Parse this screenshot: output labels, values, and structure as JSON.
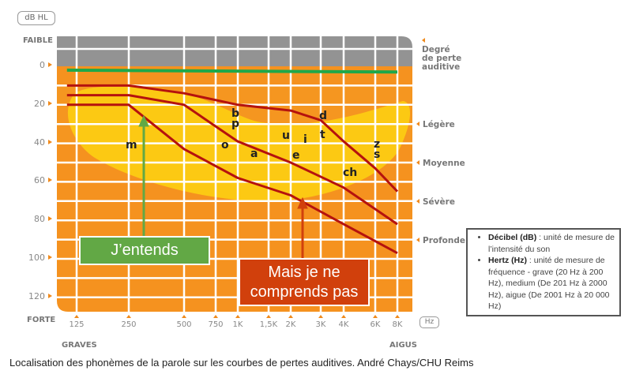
{
  "unit_y": "dB HL",
  "unit_x": "Hz",
  "faible": "FAIBLE",
  "forte": "FORTE",
  "graves": "GRAVES",
  "aigus": "AIGUS",
  "degree_title": [
    "Degré",
    "de perte",
    "auditive"
  ],
  "degree_levels": [
    "Légère",
    "Moyenne",
    "Sévère",
    "Profonde"
  ],
  "y_ticks": [
    "0",
    "20",
    "40",
    "60",
    "80",
    "100",
    "120"
  ],
  "x_ticks": [
    "125",
    "250",
    "500",
    "750",
    "1K",
    "1,5K",
    "2K",
    "3K",
    "4K",
    "6K",
    "8K"
  ],
  "phonemes": [
    "m",
    "b",
    "p",
    "o",
    "a",
    "u",
    "i",
    "e",
    "d",
    "t",
    "z",
    "s",
    "ch"
  ],
  "callouts": {
    "hear": "J’entends",
    "understand_1": "Mais je ne",
    "understand_2": "comprends pas"
  },
  "info": {
    "db_term": "Décibel (dB)",
    "db_text": " : unité de mesure de l’intensité du son",
    "hz_term": "Hertz (Hz)",
    "hz_text": " : unité de mesure de fréquence - grave (20 Hz à 200 Hz), medium (De 201 Hz à 2000 Hz), aigue (De 2001 Hz à 20 000 Hz)"
  },
  "caption": "Localisation des phonèmes de la parole sur les courbes de pertes auditives. André Chays/CHU Reims",
  "colors": {
    "orange": "#f5921f",
    "yellow": "#fcc913",
    "grey": "#939393",
    "green_line": "#1fa84a",
    "curve": "#b5120e",
    "green_box": "#62a845",
    "red_box": "#d1400c"
  },
  "chart_data": {
    "type": "line",
    "xlabel": "Hz",
    "ylabel": "dB HL",
    "ylim": [
      -15,
      128
    ],
    "x_ticks_hz": [
      125,
      250,
      500,
      750,
      1000,
      1500,
      2000,
      3000,
      4000,
      6000,
      8000
    ],
    "series": [
      {
        "name": "normal hearing",
        "color": "#1fa84a",
        "points": [
          [
            110,
            2
          ],
          [
            8000,
            3
          ]
        ]
      },
      {
        "name": "loss curve 1",
        "color": "#b5120e",
        "points": [
          [
            110,
            10
          ],
          [
            250,
            10
          ],
          [
            500,
            14
          ],
          [
            1000,
            20
          ],
          [
            2000,
            23
          ],
          [
            3000,
            28
          ],
          [
            4000,
            39
          ],
          [
            6000,
            53
          ],
          [
            8000,
            65
          ]
        ]
      },
      {
        "name": "loss curve 2",
        "color": "#b5120e",
        "points": [
          [
            110,
            15
          ],
          [
            250,
            15
          ],
          [
            500,
            20
          ],
          [
            1000,
            39
          ],
          [
            2000,
            50
          ],
          [
            4000,
            63
          ],
          [
            8000,
            82
          ]
        ]
      },
      {
        "name": "loss curve 3",
        "color": "#b5120e",
        "points": [
          [
            110,
            20
          ],
          [
            250,
            20
          ],
          [
            500,
            43
          ],
          [
            1000,
            58
          ],
          [
            2000,
            67
          ],
          [
            4000,
            82
          ],
          [
            8000,
            97
          ]
        ]
      }
    ]
  }
}
